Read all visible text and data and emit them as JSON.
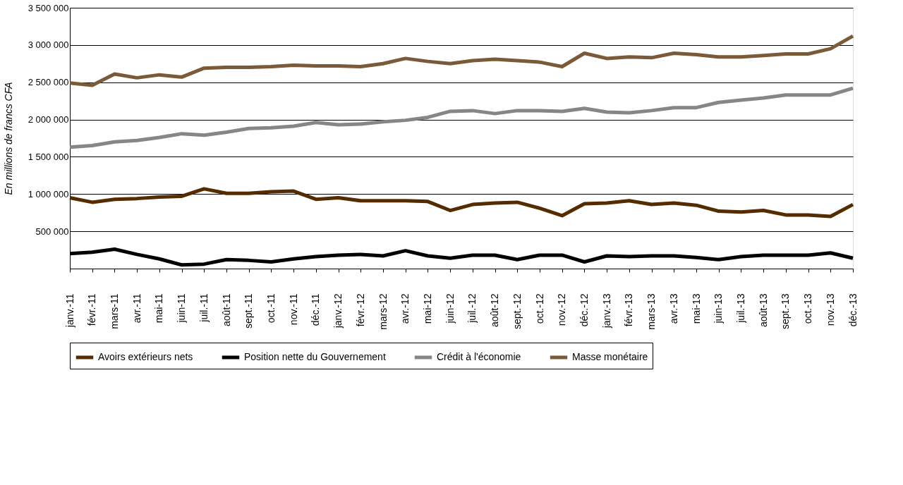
{
  "chart_data": {
    "type": "line",
    "ylabel": "En millions de francs CFA",
    "categories": [
      "janv.-11",
      "févr.-11",
      "mars-11",
      "avr.-11",
      "mai-11",
      "juin-11",
      "juil.-11",
      "août-11",
      "sept.-11",
      "oct.-11",
      "nov.-11",
      "déc.-11",
      "janv.-12",
      "févr.-12",
      "mars-12",
      "avr.-12",
      "mai-12",
      "juin-12",
      "juil.-12",
      "août-12",
      "sept.-12",
      "oct.-12",
      "nov.-12",
      "déc.-12",
      "janv.-13",
      "févr.-13",
      "mars-13",
      "avr.-13",
      "mai-13",
      "juin-13",
      "juil.-13",
      "août-13",
      "sept.-13",
      "oct.-13",
      "nov.-13",
      "déc.-13"
    ],
    "series": [
      {
        "name": "Avoirs extérieurs nets",
        "color": "#542c00",
        "values": [
          950000,
          890000,
          930000,
          940000,
          960000,
          970000,
          1070000,
          1010000,
          1010000,
          1030000,
          1040000,
          930000,
          950000,
          910000,
          910000,
          910000,
          900000,
          780000,
          860000,
          880000,
          890000,
          810000,
          710000,
          870000,
          880000,
          910000,
          860000,
          880000,
          850000,
          770000,
          760000,
          780000,
          720000,
          720000,
          700000,
          860000
        ]
      },
      {
        "name": "Position nette du Gouvernement",
        "color": "#000000",
        "values": [
          200000,
          220000,
          260000,
          190000,
          130000,
          50000,
          60000,
          120000,
          110000,
          90000,
          130000,
          160000,
          180000,
          190000,
          170000,
          240000,
          170000,
          140000,
          180000,
          180000,
          120000,
          180000,
          180000,
          90000,
          170000,
          160000,
          170000,
          170000,
          150000,
          120000,
          160000,
          180000,
          180000,
          180000,
          210000,
          140000
        ]
      },
      {
        "name": "Crédit à l'économie",
        "color": "#868686",
        "values": [
          1630000,
          1650000,
          1700000,
          1720000,
          1760000,
          1810000,
          1790000,
          1830000,
          1880000,
          1890000,
          1910000,
          1960000,
          1930000,
          1940000,
          1970000,
          1990000,
          2030000,
          2110000,
          2120000,
          2080000,
          2120000,
          2120000,
          2110000,
          2150000,
          2100000,
          2090000,
          2120000,
          2160000,
          2160000,
          2230000,
          2260000,
          2290000,
          2330000,
          2330000,
          2330000,
          2420000
        ]
      },
      {
        "name": "Masse monétaire",
        "color": "#7a5a38",
        "values": [
          2490000,
          2460000,
          2610000,
          2560000,
          2600000,
          2570000,
          2690000,
          2700000,
          2700000,
          2710000,
          2730000,
          2720000,
          2720000,
          2710000,
          2750000,
          2820000,
          2780000,
          2750000,
          2790000,
          2810000,
          2790000,
          2770000,
          2710000,
          2890000,
          2820000,
          2840000,
          2830000,
          2890000,
          2870000,
          2840000,
          2840000,
          2860000,
          2880000,
          2880000,
          2950000,
          3120000
        ]
      }
    ],
    "ylim": [
      0,
      3500000
    ],
    "yticks": [
      {
        "value": 500000,
        "label": "500 000"
      },
      {
        "value": 1000000,
        "label": "1 000 000"
      },
      {
        "value": 1500000,
        "label": "1 500 000"
      },
      {
        "value": 2000000,
        "label": "2 000 000"
      },
      {
        "value": 2500000,
        "label": "2 500 000"
      },
      {
        "value": 3000000,
        "label": "3 000 000"
      },
      {
        "value": 3500000,
        "label": "3 500 000"
      }
    ],
    "grid": "y",
    "legend": "bottom",
    "marker": "none",
    "line_style": "solid"
  }
}
